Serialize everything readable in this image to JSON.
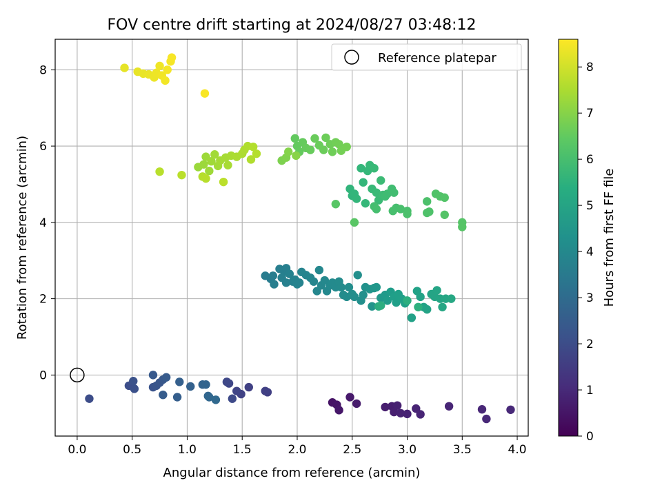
{
  "chart_data": {
    "type": "scatter",
    "title": "FOV centre drift starting at 2024/08/27 03:48:12",
    "xlabel": "Angular distance from reference (arcmin)",
    "ylabel": "Rotation from reference (arcmin)",
    "xlim": [
      -0.2,
      4.1
    ],
    "ylim": [
      -1.6,
      8.8
    ],
    "xticks": [
      0.0,
      0.5,
      1.0,
      1.5,
      2.0,
      2.5,
      3.0,
      3.5,
      4.0
    ],
    "xtick_labels": [
      "0.0",
      "0.5",
      "1.0",
      "1.5",
      "2.0",
      "2.5",
      "3.0",
      "3.5",
      "4.0"
    ],
    "yticks": [
      0,
      2,
      4,
      6,
      8
    ],
    "ytick_labels": [
      "0",
      "2",
      "4",
      "6",
      "8"
    ],
    "grid": true,
    "legend": {
      "label": "Reference platepar",
      "placement": "top-right"
    },
    "reference_point": {
      "x": 0.0,
      "y": 0.0
    },
    "colorbar": {
      "label": "Hours from first FF file",
      "range": [
        0,
        8.6
      ],
      "ticks": [
        0,
        1,
        2,
        3,
        4,
        5,
        6,
        7,
        8
      ],
      "tick_labels": [
        "0",
        "1",
        "2",
        "3",
        "4",
        "5",
        "6",
        "7",
        "8"
      ],
      "colormap": "viridis"
    },
    "points": [
      {
        "x": 2.32,
        "y": -0.72,
        "c": 0.45
      },
      {
        "x": 2.36,
        "y": -0.78,
        "c": 0.5
      },
      {
        "x": 2.38,
        "y": -0.92,
        "c": 0.55
      },
      {
        "x": 2.48,
        "y": -0.58,
        "c": 0.6
      },
      {
        "x": 2.54,
        "y": -0.75,
        "c": 0.65
      },
      {
        "x": 2.8,
        "y": -0.84,
        "c": 0.7
      },
      {
        "x": 2.86,
        "y": -0.82,
        "c": 0.72
      },
      {
        "x": 2.88,
        "y": -0.97,
        "c": 0.75
      },
      {
        "x": 2.91,
        "y": -0.8,
        "c": 0.78
      },
      {
        "x": 2.94,
        "y": -1.0,
        "c": 0.8
      },
      {
        "x": 3.0,
        "y": -1.02,
        "c": 0.82
      },
      {
        "x": 3.08,
        "y": -0.88,
        "c": 0.85
      },
      {
        "x": 3.12,
        "y": -1.03,
        "c": 0.88
      },
      {
        "x": 3.38,
        "y": -0.82,
        "c": 0.9
      },
      {
        "x": 3.68,
        "y": -0.9,
        "c": 0.92
      },
      {
        "x": 3.72,
        "y": -1.15,
        "c": 0.95
      },
      {
        "x": 3.94,
        "y": -0.91,
        "c": 0.98
      },
      {
        "x": 1.73,
        "y": -0.45,
        "c": 1.6
      },
      {
        "x": 1.71,
        "y": -0.42,
        "c": 1.62
      },
      {
        "x": 1.56,
        "y": -0.32,
        "c": 1.65
      },
      {
        "x": 1.49,
        "y": -0.5,
        "c": 1.7
      },
      {
        "x": 1.45,
        "y": -0.42,
        "c": 1.75
      },
      {
        "x": 1.38,
        "y": -0.22,
        "c": 1.8
      },
      {
        "x": 1.36,
        "y": -0.18,
        "c": 1.85
      },
      {
        "x": 1.41,
        "y": -0.62,
        "c": 1.9
      },
      {
        "x": 0.11,
        "y": -0.62,
        "c": 2.0
      },
      {
        "x": 0.47,
        "y": -0.28,
        "c": 2.05
      },
      {
        "x": 0.52,
        "y": -0.36,
        "c": 2.1
      },
      {
        "x": 0.51,
        "y": -0.16,
        "c": 2.15
      },
      {
        "x": 0.69,
        "y": -0.32,
        "c": 2.2
      },
      {
        "x": 0.72,
        "y": -0.28,
        "c": 2.25
      },
      {
        "x": 0.75,
        "y": -0.2,
        "c": 2.3
      },
      {
        "x": 0.78,
        "y": -0.12,
        "c": 2.35
      },
      {
        "x": 0.69,
        "y": 0.0,
        "c": 2.4
      },
      {
        "x": 0.81,
        "y": -0.06,
        "c": 2.45
      },
      {
        "x": 0.78,
        "y": -0.52,
        "c": 2.5
      },
      {
        "x": 0.91,
        "y": -0.58,
        "c": 2.55
      },
      {
        "x": 0.93,
        "y": -0.18,
        "c": 2.6
      },
      {
        "x": 1.03,
        "y": -0.3,
        "c": 2.65
      },
      {
        "x": 1.14,
        "y": -0.25,
        "c": 2.7
      },
      {
        "x": 1.17,
        "y": -0.25,
        "c": 2.75
      },
      {
        "x": 1.19,
        "y": -0.55,
        "c": 2.8
      },
      {
        "x": 1.2,
        "y": -0.58,
        "c": 2.85
      },
      {
        "x": 1.26,
        "y": -0.65,
        "c": 2.9
      },
      {
        "x": 1.71,
        "y": 2.6,
        "c": 3.6
      },
      {
        "x": 1.76,
        "y": 2.52,
        "c": 3.62
      },
      {
        "x": 1.78,
        "y": 2.6,
        "c": 3.64
      },
      {
        "x": 1.79,
        "y": 2.38,
        "c": 3.66
      },
      {
        "x": 1.84,
        "y": 2.78,
        "c": 3.68
      },
      {
        "x": 1.88,
        "y": 2.72,
        "c": 3.7
      },
      {
        "x": 1.9,
        "y": 2.8,
        "c": 3.72
      },
      {
        "x": 1.86,
        "y": 2.55,
        "c": 3.74
      },
      {
        "x": 1.9,
        "y": 2.42,
        "c": 3.76
      },
      {
        "x": 1.93,
        "y": 2.65,
        "c": 3.78
      },
      {
        "x": 1.96,
        "y": 2.45,
        "c": 3.8
      },
      {
        "x": 1.98,
        "y": 2.5,
        "c": 3.82
      },
      {
        "x": 2.0,
        "y": 2.38,
        "c": 3.84
      },
      {
        "x": 2.02,
        "y": 2.42,
        "c": 3.86
      },
      {
        "x": 2.04,
        "y": 2.7,
        "c": 3.88
      },
      {
        "x": 2.08,
        "y": 2.62,
        "c": 3.9
      },
      {
        "x": 2.12,
        "y": 2.55,
        "c": 3.92
      },
      {
        "x": 2.15,
        "y": 2.45,
        "c": 3.94
      },
      {
        "x": 2.18,
        "y": 2.2,
        "c": 3.96
      },
      {
        "x": 2.2,
        "y": 2.75,
        "c": 3.98
      },
      {
        "x": 2.22,
        "y": 2.35,
        "c": 4.0
      },
      {
        "x": 2.25,
        "y": 2.48,
        "c": 4.02
      },
      {
        "x": 2.27,
        "y": 2.2,
        "c": 4.04
      },
      {
        "x": 2.3,
        "y": 2.35,
        "c": 4.06
      },
      {
        "x": 2.32,
        "y": 2.42,
        "c": 4.08
      },
      {
        "x": 2.35,
        "y": 2.3,
        "c": 4.1
      },
      {
        "x": 2.38,
        "y": 2.45,
        "c": 4.12
      },
      {
        "x": 2.4,
        "y": 2.3,
        "c": 4.14
      },
      {
        "x": 2.42,
        "y": 2.1,
        "c": 4.16
      },
      {
        "x": 2.45,
        "y": 2.05,
        "c": 4.18
      },
      {
        "x": 2.47,
        "y": 2.3,
        "c": 4.2
      },
      {
        "x": 2.5,
        "y": 2.12,
        "c": 4.22
      },
      {
        "x": 2.52,
        "y": 2.05,
        "c": 4.24
      },
      {
        "x": 2.55,
        "y": 2.62,
        "c": 4.26
      },
      {
        "x": 2.58,
        "y": 1.95,
        "c": 4.28
      },
      {
        "x": 2.6,
        "y": 2.1,
        "c": 4.3
      },
      {
        "x": 2.62,
        "y": 2.3,
        "c": 4.35
      },
      {
        "x": 2.66,
        "y": 2.25,
        "c": 4.4
      },
      {
        "x": 2.68,
        "y": 1.8,
        "c": 4.45
      },
      {
        "x": 2.7,
        "y": 2.28,
        "c": 4.5
      },
      {
        "x": 2.72,
        "y": 2.3,
        "c": 4.55
      },
      {
        "x": 2.76,
        "y": 2.02,
        "c": 4.6
      },
      {
        "x": 2.8,
        "y": 2.1,
        "c": 4.65
      },
      {
        "x": 2.82,
        "y": 1.95,
        "c": 4.7
      },
      {
        "x": 2.85,
        "y": 2.18,
        "c": 4.75
      },
      {
        "x": 2.88,
        "y": 2.05,
        "c": 4.8
      },
      {
        "x": 2.9,
        "y": 1.9,
        "c": 4.82
      },
      {
        "x": 2.92,
        "y": 2.12,
        "c": 4.84
      },
      {
        "x": 2.95,
        "y": 2.0,
        "c": 4.86
      },
      {
        "x": 2.98,
        "y": 1.88,
        "c": 4.88
      },
      {
        "x": 3.04,
        "y": 1.5,
        "c": 4.9
      },
      {
        "x": 3.09,
        "y": 2.2,
        "c": 4.92
      },
      {
        "x": 3.12,
        "y": 2.05,
        "c": 4.94
      },
      {
        "x": 3.15,
        "y": 1.78,
        "c": 4.96
      },
      {
        "x": 3.18,
        "y": 1.72,
        "c": 4.98
      },
      {
        "x": 3.22,
        "y": 2.12,
        "c": 5.0
      },
      {
        "x": 3.25,
        "y": 2.05,
        "c": 5.02
      },
      {
        "x": 3.27,
        "y": 2.22,
        "c": 5.04
      },
      {
        "x": 3.3,
        "y": 2.0,
        "c": 5.06
      },
      {
        "x": 3.32,
        "y": 1.78,
        "c": 5.08
      },
      {
        "x": 3.35,
        "y": 2.0,
        "c": 5.1
      },
      {
        "x": 3.4,
        "y": 2.0,
        "c": 5.12
      },
      {
        "x": 2.74,
        "y": 1.8,
        "c": 5.3
      },
      {
        "x": 2.76,
        "y": 1.82,
        "c": 5.35
      },
      {
        "x": 3.0,
        "y": 1.95,
        "c": 5.4
      },
      {
        "x": 3.1,
        "y": 1.78,
        "c": 5.45
      },
      {
        "x": 2.48,
        "y": 4.88,
        "c": 5.6
      },
      {
        "x": 2.5,
        "y": 4.7,
        "c": 5.62
      },
      {
        "x": 2.52,
        "y": 4.75,
        "c": 5.64
      },
      {
        "x": 2.54,
        "y": 4.62,
        "c": 5.66
      },
      {
        "x": 2.58,
        "y": 5.42,
        "c": 5.68
      },
      {
        "x": 2.6,
        "y": 5.05,
        "c": 5.7
      },
      {
        "x": 2.62,
        "y": 4.5,
        "c": 5.72
      },
      {
        "x": 2.64,
        "y": 5.35,
        "c": 5.74
      },
      {
        "x": 2.66,
        "y": 5.5,
        "c": 5.76
      },
      {
        "x": 2.68,
        "y": 4.88,
        "c": 5.78
      },
      {
        "x": 2.7,
        "y": 5.42,
        "c": 5.8
      },
      {
        "x": 2.72,
        "y": 4.78,
        "c": 5.82
      },
      {
        "x": 2.74,
        "y": 4.58,
        "c": 5.84
      },
      {
        "x": 2.76,
        "y": 5.1,
        "c": 5.86
      },
      {
        "x": 2.78,
        "y": 4.72,
        "c": 5.88
      },
      {
        "x": 2.8,
        "y": 4.68,
        "c": 5.9
      },
      {
        "x": 2.82,
        "y": 4.75,
        "c": 5.92
      },
      {
        "x": 2.86,
        "y": 4.88,
        "c": 5.94
      },
      {
        "x": 2.88,
        "y": 4.78,
        "c": 5.96
      },
      {
        "x": 2.7,
        "y": 4.42,
        "c": 6.0
      },
      {
        "x": 2.72,
        "y": 4.35,
        "c": 6.02
      },
      {
        "x": 2.9,
        "y": 4.38,
        "c": 6.04
      },
      {
        "x": 2.87,
        "y": 4.3,
        "c": 6.06
      },
      {
        "x": 2.94,
        "y": 4.35,
        "c": 6.08
      },
      {
        "x": 3.0,
        "y": 4.3,
        "c": 6.1
      },
      {
        "x": 3.0,
        "y": 4.22,
        "c": 6.12
      },
      {
        "x": 3.18,
        "y": 4.55,
        "c": 6.14
      },
      {
        "x": 3.2,
        "y": 4.28,
        "c": 6.16
      },
      {
        "x": 3.18,
        "y": 4.25,
        "c": 6.18
      },
      {
        "x": 3.26,
        "y": 4.75,
        "c": 6.2
      },
      {
        "x": 3.3,
        "y": 4.68,
        "c": 6.22
      },
      {
        "x": 3.34,
        "y": 4.65,
        "c": 6.24
      },
      {
        "x": 3.34,
        "y": 4.2,
        "c": 6.26
      },
      {
        "x": 3.5,
        "y": 4.0,
        "c": 6.28
      },
      {
        "x": 3.5,
        "y": 3.88,
        "c": 6.3
      },
      {
        "x": 2.35,
        "y": 4.48,
        "c": 6.32
      },
      {
        "x": 2.52,
        "y": 4.0,
        "c": 6.34
      },
      {
        "x": 1.98,
        "y": 6.2,
        "c": 6.5
      },
      {
        "x": 2.0,
        "y": 6.0,
        "c": 6.52
      },
      {
        "x": 2.02,
        "y": 5.85,
        "c": 6.54
      },
      {
        "x": 2.05,
        "y": 6.1,
        "c": 6.56
      },
      {
        "x": 2.08,
        "y": 5.95,
        "c": 6.58
      },
      {
        "x": 2.12,
        "y": 5.9,
        "c": 6.6
      },
      {
        "x": 2.16,
        "y": 6.2,
        "c": 6.62
      },
      {
        "x": 2.2,
        "y": 6.02,
        "c": 6.64
      },
      {
        "x": 2.24,
        "y": 5.9,
        "c": 6.66
      },
      {
        "x": 2.26,
        "y": 6.22,
        "c": 6.68
      },
      {
        "x": 2.3,
        "y": 6.05,
        "c": 6.7
      },
      {
        "x": 2.32,
        "y": 5.85,
        "c": 6.72
      },
      {
        "x": 2.35,
        "y": 6.1,
        "c": 6.74
      },
      {
        "x": 2.38,
        "y": 6.05,
        "c": 6.76
      },
      {
        "x": 2.4,
        "y": 5.88,
        "c": 6.78
      },
      {
        "x": 2.45,
        "y": 5.98,
        "c": 6.8
      },
      {
        "x": 1.86,
        "y": 5.62,
        "c": 6.9
      },
      {
        "x": 1.9,
        "y": 5.7,
        "c": 6.95
      },
      {
        "x": 1.92,
        "y": 5.85,
        "c": 7.0
      },
      {
        "x": 1.99,
        "y": 5.75,
        "c": 7.05
      },
      {
        "x": 1.1,
        "y": 5.45,
        "c": 7.3
      },
      {
        "x": 1.15,
        "y": 5.52,
        "c": 7.32
      },
      {
        "x": 1.17,
        "y": 5.72,
        "c": 7.34
      },
      {
        "x": 1.2,
        "y": 5.35,
        "c": 7.36
      },
      {
        "x": 1.22,
        "y": 5.6,
        "c": 7.38
      },
      {
        "x": 1.25,
        "y": 5.78,
        "c": 7.4
      },
      {
        "x": 1.28,
        "y": 5.48,
        "c": 7.42
      },
      {
        "x": 1.3,
        "y": 5.62,
        "c": 7.44
      },
      {
        "x": 1.35,
        "y": 5.7,
        "c": 7.46
      },
      {
        "x": 1.37,
        "y": 5.5,
        "c": 7.48
      },
      {
        "x": 1.4,
        "y": 5.75,
        "c": 7.5
      },
      {
        "x": 1.45,
        "y": 5.72,
        "c": 7.52
      },
      {
        "x": 1.5,
        "y": 5.8,
        "c": 7.54
      },
      {
        "x": 1.52,
        "y": 5.9,
        "c": 7.56
      },
      {
        "x": 1.55,
        "y": 6.0,
        "c": 7.58
      },
      {
        "x": 1.58,
        "y": 5.65,
        "c": 7.6
      },
      {
        "x": 1.6,
        "y": 5.98,
        "c": 7.62
      },
      {
        "x": 1.63,
        "y": 5.8,
        "c": 7.64
      },
      {
        "x": 1.14,
        "y": 5.2,
        "c": 7.66
      },
      {
        "x": 1.17,
        "y": 5.15,
        "c": 7.68
      },
      {
        "x": 0.75,
        "y": 5.33,
        "c": 7.7
      },
      {
        "x": 0.95,
        "y": 5.24,
        "c": 7.72
      },
      {
        "x": 1.33,
        "y": 5.06,
        "c": 7.74
      },
      {
        "x": 0.43,
        "y": 8.05,
        "c": 8.3
      },
      {
        "x": 0.55,
        "y": 7.95,
        "c": 8.32
      },
      {
        "x": 0.6,
        "y": 7.9,
        "c": 8.34
      },
      {
        "x": 0.65,
        "y": 7.88,
        "c": 8.36
      },
      {
        "x": 0.7,
        "y": 7.8,
        "c": 8.38
      },
      {
        "x": 0.72,
        "y": 7.92,
        "c": 8.4
      },
      {
        "x": 0.75,
        "y": 8.1,
        "c": 8.42
      },
      {
        "x": 0.77,
        "y": 7.85,
        "c": 8.44
      },
      {
        "x": 0.8,
        "y": 7.72,
        "c": 8.46
      },
      {
        "x": 0.82,
        "y": 8.0,
        "c": 8.48
      },
      {
        "x": 0.85,
        "y": 8.22,
        "c": 8.5
      },
      {
        "x": 0.86,
        "y": 8.32,
        "c": 8.52
      },
      {
        "x": 1.16,
        "y": 7.38,
        "c": 8.54
      }
    ]
  }
}
